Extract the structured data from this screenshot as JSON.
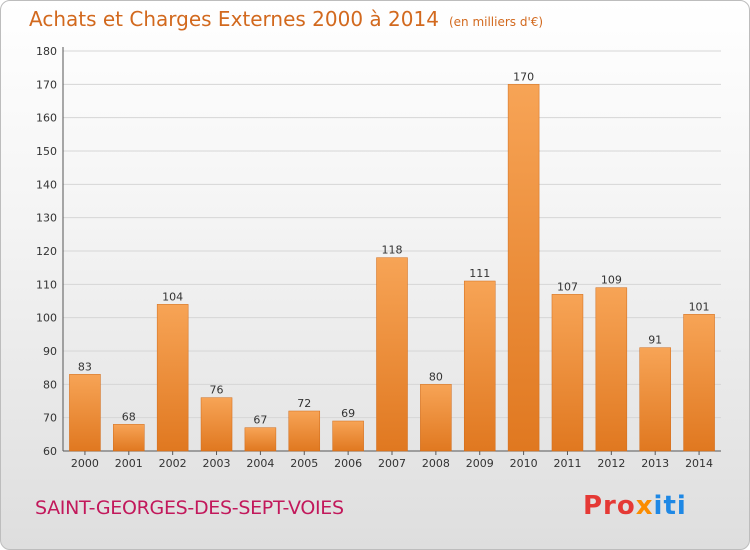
{
  "title": "Achats et Charges Externes 2000 à 2014",
  "subtitle": "(en milliers d'€)",
  "commune": "SAINT-GEORGES-DES-SEPT-VOIES",
  "logo": {
    "p1": "Pro",
    "p2": "x",
    "p3": "iti"
  },
  "colors": {
    "bar_top": "#f7a456",
    "bar_bottom": "#e07820",
    "title": "#d2691e",
    "commune": "#c2185b"
  },
  "chart_data": {
    "type": "bar",
    "title": "Achats et Charges Externes 2000 à 2014",
    "categories": [
      "2000",
      "2001",
      "2002",
      "2003",
      "2004",
      "2005",
      "2006",
      "2007",
      "2008",
      "2009",
      "2010",
      "2011",
      "2012",
      "2013",
      "2014"
    ],
    "values": [
      83,
      68,
      104,
      76,
      67,
      72,
      69,
      118,
      80,
      111,
      170,
      107,
      109,
      91,
      101
    ],
    "ylim": [
      60,
      180
    ],
    "yticks": [
      60,
      70,
      80,
      90,
      100,
      110,
      120,
      130,
      140,
      150,
      160,
      170,
      180
    ],
    "grid": true,
    "legend": "none",
    "xlabel": "",
    "ylabel": ""
  }
}
